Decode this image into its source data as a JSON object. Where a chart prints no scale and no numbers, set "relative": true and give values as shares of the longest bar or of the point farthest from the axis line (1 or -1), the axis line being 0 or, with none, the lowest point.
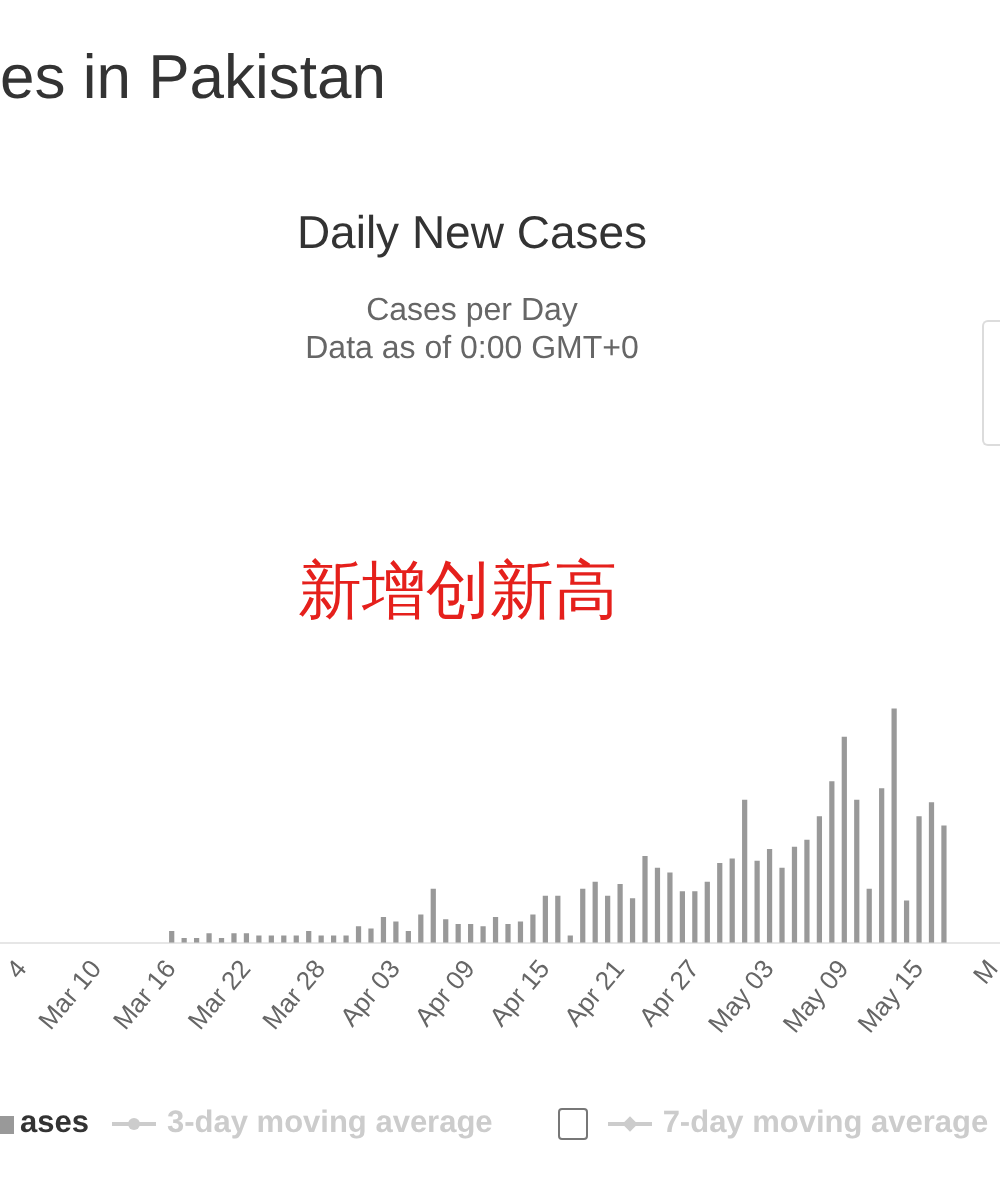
{
  "chart_data": {
    "type": "bar",
    "title": "Daily New Cases",
    "subtitle": "Cases per Day",
    "annotations": [
      "es in Pakistan",
      "Data as of 0:00 GMT+0",
      "新增创新高"
    ],
    "categories": [
      "4",
      null,
      null,
      null,
      null,
      null,
      "Mar 10",
      null,
      null,
      null,
      null,
      null,
      "Mar 16",
      null,
      null,
      null,
      null,
      null,
      "Mar 22",
      null,
      null,
      null,
      null,
      null,
      "Mar 28",
      null,
      null,
      null,
      null,
      null,
      "Apr 03",
      null,
      null,
      null,
      null,
      null,
      "Apr 09",
      null,
      null,
      null,
      null,
      null,
      "Apr 15",
      null,
      null,
      null,
      null,
      null,
      "Apr 21",
      null,
      null,
      null,
      null,
      null,
      "Apr 27",
      null,
      null,
      null,
      null,
      null,
      "May 03",
      null,
      null,
      null,
      null,
      null,
      "May 09",
      null,
      null,
      null,
      null,
      null,
      "May 15",
      null,
      null,
      null,
      null,
      null,
      "M"
    ],
    "series": [
      {
        "name": "ases",
        "type": "bar",
        "color": "#999999",
        "values": [
          null,
          null,
          null,
          null,
          null,
          null,
          null,
          null,
          null,
          null,
          null,
          null,
          0.05,
          0.02,
          0.02,
          0.04,
          0.02,
          0.04,
          0.04,
          0.03,
          0.03,
          0.03,
          0.03,
          0.05,
          0.03,
          0.03,
          0.03,
          0.07,
          0.06,
          0.11,
          0.09,
          0.05,
          0.12,
          0.23,
          0.1,
          0.08,
          0.08,
          0.07,
          0.11,
          0.08,
          0.09,
          0.12,
          0.2,
          0.2,
          0.03,
          0.23,
          0.26,
          0.2,
          0.25,
          0.19,
          0.37,
          0.32,
          0.3,
          0.22,
          0.22,
          0.26,
          0.34,
          0.36,
          0.61,
          0.35,
          0.4,
          0.32,
          0.41,
          0.44,
          0.54,
          0.69,
          0.88,
          0.61,
          0.23,
          0.66,
          1,
          0.18,
          0.54,
          0.6,
          0.5,
          null,
          null,
          null,
          null
        ]
      },
      {
        "name": "3-day moving average",
        "type": "line",
        "color": "#cccccc",
        "values": [
          null,
          null,
          null,
          null,
          null,
          null,
          null,
          null,
          null,
          null,
          null,
          null,
          null,
          null,
          null,
          null,
          null,
          null,
          null,
          null,
          null,
          null,
          null,
          null,
          null,
          null,
          null,
          null,
          null,
          null,
          null,
          null,
          null,
          null,
          null,
          null,
          null,
          null,
          null,
          null,
          null,
          null,
          null,
          null,
          null,
          null,
          null,
          null,
          null,
          null,
          null,
          null,
          null,
          null,
          null,
          null,
          null,
          null,
          null,
          null,
          null,
          null,
          null,
          null,
          null,
          null,
          null,
          null,
          null,
          null,
          null,
          null,
          null,
          null,
          null,
          null,
          null,
          null,
          null
        ]
      },
      {
        "name": "7-day moving average",
        "type": "line",
        "color": "#cccccc",
        "values": [
          null,
          null,
          null,
          null,
          null,
          null,
          null,
          null,
          null,
          null,
          null,
          null,
          null,
          null,
          null,
          null,
          null,
          null,
          null,
          null,
          null,
          null,
          null,
          null,
          null,
          null,
          null,
          null,
          null,
          null,
          null,
          null,
          null,
          null,
          null,
          null,
          null,
          null,
          null,
          null,
          null,
          null,
          null,
          null,
          null,
          null,
          null,
          null,
          null,
          null,
          null,
          null,
          null,
          null,
          null,
          null,
          null,
          null,
          null,
          null,
          null,
          null,
          null,
          null,
          null,
          null,
          null,
          null,
          null,
          null,
          null,
          null,
          null,
          null,
          null,
          null,
          null,
          null,
          null
        ]
      }
    ],
    "relative": true,
    "legend": "bottom"
  }
}
